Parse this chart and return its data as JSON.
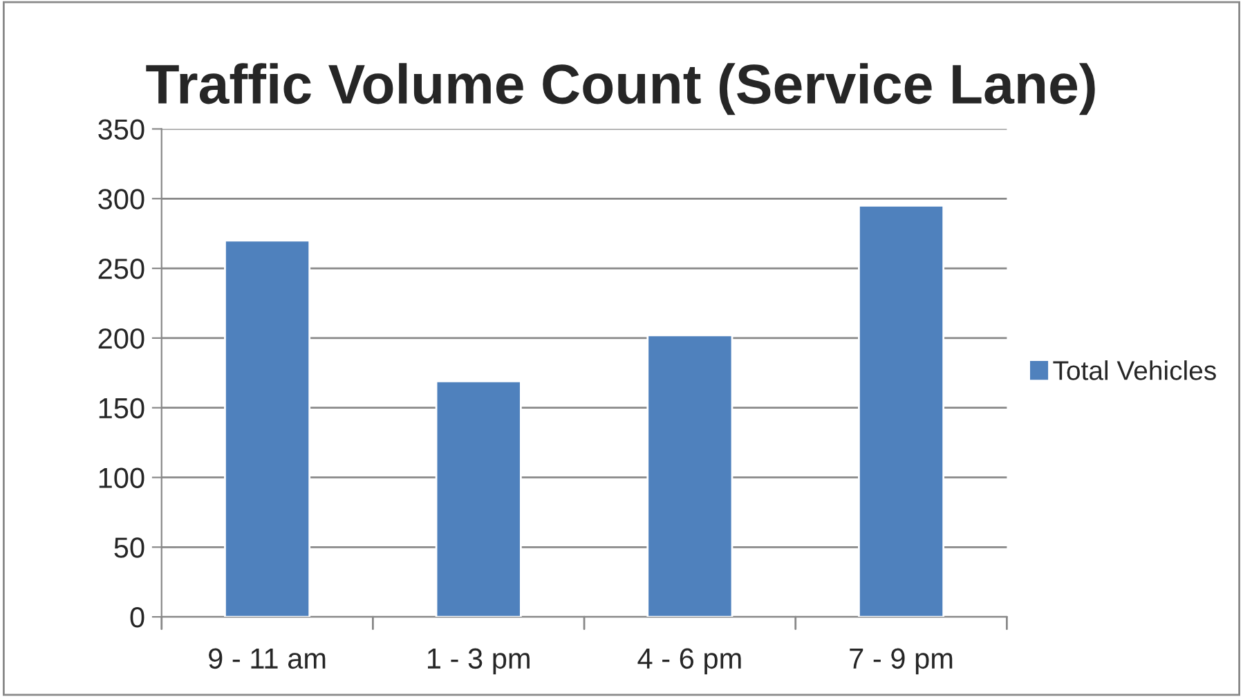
{
  "chart_data": {
    "type": "bar",
    "title": "Traffic Volume Count (Service Lane)",
    "categories": [
      "9 - 11 am",
      "1 - 3 pm",
      "4 - 6 pm",
      "7 - 9 pm"
    ],
    "series": [
      {
        "name": "Total Vehicles",
        "color": "#4f81bd",
        "values": [
          270,
          169,
          202,
          295
        ]
      }
    ],
    "ylim": [
      0,
      350
    ],
    "yticks": [
      0,
      50,
      100,
      150,
      200,
      250,
      300,
      350
    ],
    "grid": "y",
    "legend": "right"
  }
}
